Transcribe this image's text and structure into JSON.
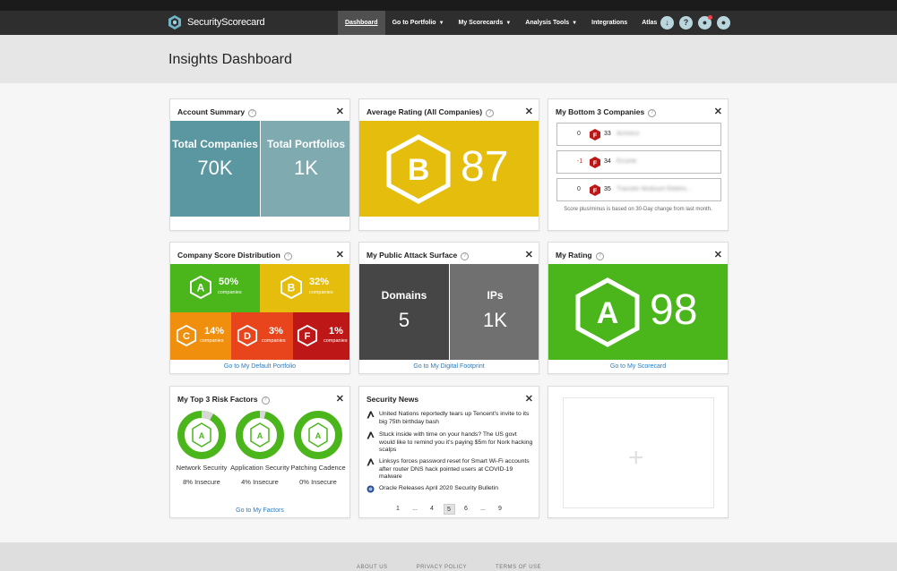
{
  "brand": {
    "name": "SecurityScorecard"
  },
  "nav": {
    "items": [
      {
        "label": "Dashboard",
        "active": true,
        "dropdown": false
      },
      {
        "label": "Go to Portfolio",
        "active": false,
        "dropdown": true
      },
      {
        "label": "My Scorecards",
        "active": false,
        "dropdown": true
      },
      {
        "label": "Analysis Tools",
        "active": false,
        "dropdown": true
      },
      {
        "label": "Integrations",
        "active": false,
        "dropdown": false
      },
      {
        "label": "Atlas",
        "active": false,
        "dropdown": false
      }
    ],
    "icons": [
      "download-icon",
      "help-icon",
      "notifications-icon",
      "user-icon"
    ]
  },
  "page": {
    "title": "Insights Dashboard"
  },
  "account_summary": {
    "title": "Account Summary",
    "companies_label": "Total Companies",
    "companies_value": "70K",
    "portfolios_label": "Total Portfolios",
    "portfolios_value": "1K"
  },
  "average_rating": {
    "title": "Average Rating (All Companies)",
    "grade": "B",
    "score": "87",
    "color": "#e5bd0c"
  },
  "bottom3": {
    "title": "My Bottom 3 Companies",
    "rows": [
      {
        "change": "0",
        "grade": "F",
        "score": "33",
        "name": "Acmeco"
      },
      {
        "change": "-1",
        "grade": "F",
        "score": "34",
        "name": "Ercorte"
      },
      {
        "change": "0",
        "grade": "F",
        "score": "35",
        "name": "Transfer Multisort Elektro..."
      }
    ],
    "note": "Score plus/minus is based on 30-Day change from last month."
  },
  "distribution": {
    "title": "Company Score Distribution",
    "sublabel": "companies",
    "grades": [
      {
        "grade": "A",
        "pct": "50%",
        "color": "#4bb51c"
      },
      {
        "grade": "B",
        "pct": "32%",
        "color": "#e5bd0c"
      },
      {
        "grade": "C",
        "pct": "14%",
        "color": "#ef8f0d"
      },
      {
        "grade": "D",
        "pct": "3%",
        "color": "#e8451c"
      },
      {
        "grade": "F",
        "pct": "1%",
        "color": "#be1717"
      }
    ],
    "link": "Go to My Default Portfolio"
  },
  "attack_surface": {
    "title": "My Public Attack Surface",
    "domains_label": "Domains",
    "domains_value": "5",
    "ips_label": "IPs",
    "ips_value": "1K",
    "link": "Go to My Digital Footprint"
  },
  "my_rating": {
    "title": "My Rating",
    "grade": "A",
    "score": "98",
    "color": "#4bb51c",
    "link": "Go to My Scorecard"
  },
  "risk_factors": {
    "title": "My Top 3 Risk Factors",
    "items": [
      {
        "name": "Network Security",
        "grade": "A",
        "value": "8% Insecure",
        "insecure": 0.08
      },
      {
        "name": "Application Security",
        "grade": "A",
        "value": "4% Insecure",
        "insecure": 0.04
      },
      {
        "name": "Patching Cadence",
        "grade": "A",
        "value": "0% Insecure",
        "insecure": 0.0
      }
    ],
    "link": "Go to My Factors"
  },
  "news": {
    "title": "Security News",
    "items": [
      {
        "text": "United Nations reportedly tears up Tencent's invite to its big 75th birthday bash",
        "icon": "news-source-icon"
      },
      {
        "text": "Stuck inside with time on your hands? The US govt would like to remind you it's paying $5m for Nork hacking scalps",
        "icon": "news-source-icon"
      },
      {
        "text": "Linksys forces password reset for Smart Wi-Fi accounts after router DNS hack pointed users at COVID-19 malware",
        "icon": "news-source-icon"
      },
      {
        "text": "Oracle Releases April 2020 Security Bulletin",
        "icon": "cisa-seal-icon"
      }
    ],
    "pages": [
      "1",
      "...",
      "4",
      "5",
      "6",
      "...",
      "9"
    ],
    "current_page": "5"
  },
  "footer": {
    "links": [
      "ABOUT US",
      "PRIVACY POLICY",
      "TERMS OF USE"
    ]
  }
}
